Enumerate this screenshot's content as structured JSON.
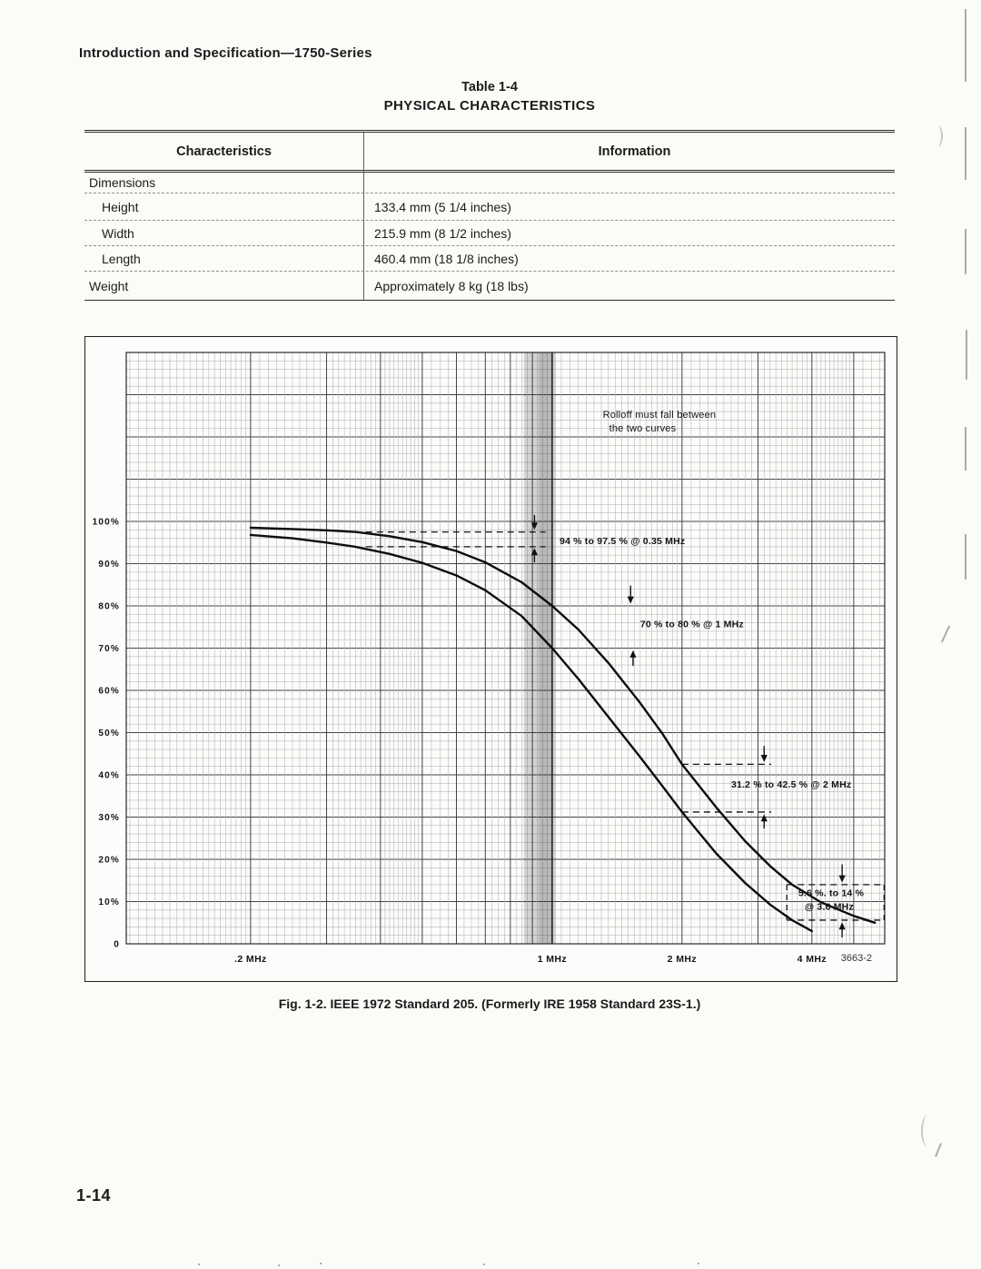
{
  "page": {
    "header": "Introduction and Specification—1750-Series",
    "figure_caption": "Fig. 1-2. IEEE 1972 Standard 205. (Formerly IRE 1958 Standard 23S-1.)",
    "page_number": "1-14"
  },
  "table": {
    "number": "Table 1-4",
    "title": "PHYSICAL CHARACTERISTICS",
    "columns": [
      "Characteristics",
      "Information"
    ],
    "rows": [
      {
        "label": "Dimensions",
        "info": ""
      },
      {
        "label": "Height",
        "info": "133.4 mm (5 1/4 inches)"
      },
      {
        "label": "Width",
        "info": "215.9 mm (8 1/2 inches)"
      },
      {
        "label": "Length",
        "info": "460.4 mm (18 1/8 inches)"
      },
      {
        "label": "Weight",
        "info": "Approximately 8 kg (18 lbs)"
      }
    ]
  },
  "chart_data": {
    "type": "line",
    "title": "",
    "xlabel": "",
    "ylabel": "",
    "x_scale": "log",
    "xlim": [
      0.103,
      5.9
    ],
    "ylim": [
      0,
      140
    ],
    "grid": true,
    "figure_number": "3663-2",
    "x_ticks": [
      {
        "value": 0.2,
        "label": ".2 MHz"
      },
      {
        "value": 1,
        "label": "1 MHz"
      },
      {
        "value": 2,
        "label": "2 MHz"
      },
      {
        "value": 4,
        "label": "4 MHz"
      }
    ],
    "y_ticks": [
      {
        "value": 100,
        "label": "100%"
      },
      {
        "value": 90,
        "label": "90%"
      },
      {
        "value": 80,
        "label": "80%"
      },
      {
        "value": 70,
        "label": "70%"
      },
      {
        "value": 60,
        "label": "60%"
      },
      {
        "value": 50,
        "label": "50%"
      },
      {
        "value": 40,
        "label": "40%"
      },
      {
        "value": 30,
        "label": "30%"
      },
      {
        "value": 20,
        "label": "20%"
      },
      {
        "value": 10,
        "label": "10%"
      },
      {
        "value": 0,
        "label": "0"
      }
    ],
    "series": [
      {
        "name": "upper-rolloff-limit",
        "points": [
          [
            0.2,
            98.5
          ],
          [
            0.25,
            98.2
          ],
          [
            0.3,
            97.9
          ],
          [
            0.35,
            97.5
          ],
          [
            0.42,
            96.5
          ],
          [
            0.5,
            95.1
          ],
          [
            0.6,
            93.0
          ],
          [
            0.7,
            90.3
          ],
          [
            0.85,
            85.6
          ],
          [
            1.0,
            80.0
          ],
          [
            1.15,
            74.4
          ],
          [
            1.35,
            66.5
          ],
          [
            1.6,
            57.0
          ],
          [
            1.8,
            49.8
          ],
          [
            2.0,
            42.5
          ],
          [
            2.4,
            32.3
          ],
          [
            2.8,
            24.3
          ],
          [
            3.2,
            18.4
          ],
          [
            3.6,
            14.0
          ],
          [
            4.2,
            9.8
          ],
          [
            5.0,
            6.6
          ],
          [
            5.6,
            5.0
          ]
        ]
      },
      {
        "name": "lower-rolloff-limit",
        "points": [
          [
            0.2,
            96.8
          ],
          [
            0.25,
            96.0
          ],
          [
            0.3,
            95.0
          ],
          [
            0.35,
            94.0
          ],
          [
            0.42,
            92.3
          ],
          [
            0.5,
            90.2
          ],
          [
            0.6,
            87.2
          ],
          [
            0.7,
            83.7
          ],
          [
            0.85,
            77.6
          ],
          [
            1.0,
            70.0
          ],
          [
            1.15,
            62.7
          ],
          [
            1.35,
            53.7
          ],
          [
            1.6,
            44.2
          ],
          [
            1.8,
            37.4
          ],
          [
            2.0,
            31.2
          ],
          [
            2.4,
            21.4
          ],
          [
            2.8,
            14.4
          ],
          [
            3.2,
            9.3
          ],
          [
            3.6,
            5.6
          ],
          [
            4.0,
            3.0
          ]
        ]
      }
    ],
    "band": {
      "f1": 0.86,
      "f2": 1.02
    },
    "dashed_h": [
      {
        "y": 97.5,
        "f1": 0.37,
        "f2": 0.965
      },
      {
        "y": 94.0,
        "f1": 0.37,
        "f2": 0.965
      },
      {
        "y": 42.5,
        "f1": 2.0,
        "f2": 3.22
      },
      {
        "y": 31.2,
        "f1": 2.0,
        "f2": 3.22
      },
      {
        "y": 14.0,
        "f1": 3.5,
        "f2": 5.88
      },
      {
        "y": 5.6,
        "f1": 3.5,
        "f2": 5.88
      }
    ],
    "dashed_v": [
      {
        "f": 3.5,
        "y1": 5.6,
        "y2": 14.0
      },
      {
        "f": 5.88,
        "y1": 5.6,
        "y2": 14.0
      }
    ],
    "arrows": [
      {
        "f": 0.91,
        "from": 101.5,
        "to": 98.0
      },
      {
        "f": 0.91,
        "from": 90.3,
        "to": 93.7
      },
      {
        "f": 1.52,
        "from": 84.8,
        "to": 80.5
      },
      {
        "f": 1.54,
        "from": 65.8,
        "to": 69.5
      },
      {
        "f": 3.1,
        "from": 46.8,
        "to": 43.0
      },
      {
        "f": 3.1,
        "from": 27.3,
        "to": 30.7
      },
      {
        "f": 4.7,
        "from": 18.8,
        "to": 14.5
      },
      {
        "f": 4.7,
        "from": 1.5,
        "to": 5.1
      }
    ],
    "labels": [
      {
        "lines": [
          "Rolloff must fall between",
          "the two curves"
        ],
        "f": 1.31,
        "pct": 124.5,
        "weight": "normal"
      },
      {
        "lines": [
          "94 % to 97.5 % @ 0.35 MHz"
        ],
        "f": 1.04,
        "pct": 94.6
      },
      {
        "lines": [
          "70 % to 80 % @ 1 MHz"
        ],
        "f": 1.6,
        "pct": 75.0
      },
      {
        "lines": [
          "31.2 % to 42.5 % @ 2 MHz"
        ],
        "f": 2.6,
        "pct": 37.0
      },
      {
        "lines": [
          "5.6 %. to 14 %",
          "@ 3.6 MHz"
        ],
        "f": 3.72,
        "pct": 11.3
      }
    ]
  }
}
